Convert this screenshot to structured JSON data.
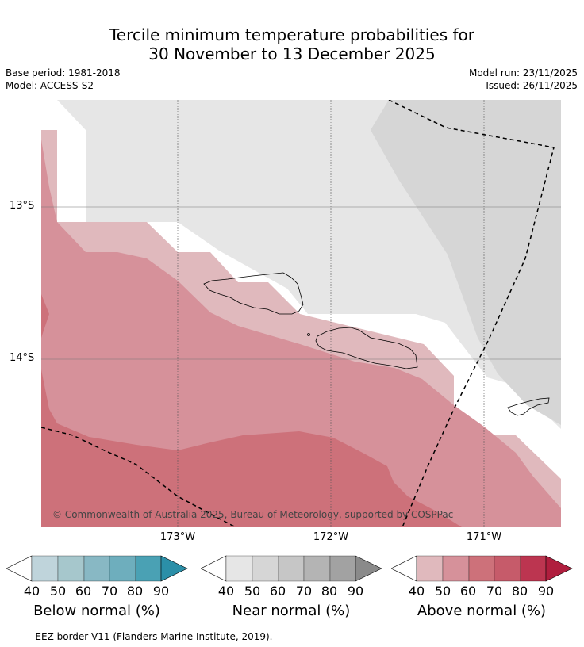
{
  "header": {
    "title_line1": "Tercile minimum temperature probabilities for",
    "title_line2": "30 November to 13 December 2025",
    "base_period": "Base period: 1981-2018",
    "model": "Model: ACCESS-S2",
    "model_run": "Model run: 23/11/2025",
    "issued": "Issued: 26/11/2025"
  },
  "map": {
    "lat_labels": [
      "13°S",
      "14°S"
    ],
    "lon_labels": [
      "173°W",
      "172°W",
      "171°W"
    ],
    "copyright": "© Commonwealth of Australia 2025, Bureau of Meteorology, supported by COSPPac"
  },
  "colorbars": [
    {
      "title": "Below normal (%)",
      "ticks": [
        "40",
        "50",
        "60",
        "70",
        "80",
        "90"
      ],
      "colors": [
        "#bfd4db",
        "#a6c7cc",
        "#88b8c4",
        "#6eaebd",
        "#4aa1b4",
        "#2b8fa8"
      ]
    },
    {
      "title": "Near normal (%)",
      "ticks": [
        "40",
        "50",
        "60",
        "70",
        "80",
        "90"
      ],
      "colors": [
        "#e6e6e6",
        "#d6d6d6",
        "#c6c6c6",
        "#b4b4b4",
        "#a2a2a2",
        "#8a8a8a"
      ]
    },
    {
      "title": "Above normal (%)",
      "ticks": [
        "40",
        "50",
        "60",
        "70",
        "80",
        "90"
      ],
      "colors": [
        "#e0b9bd",
        "#d6919a",
        "#cd717a",
        "#c65b6a",
        "#bc3550",
        "#b01e3e"
      ]
    }
  ],
  "footnote": "--  --  -- EEZ border V11 (Flanders Marine Institute, 2019)."
}
